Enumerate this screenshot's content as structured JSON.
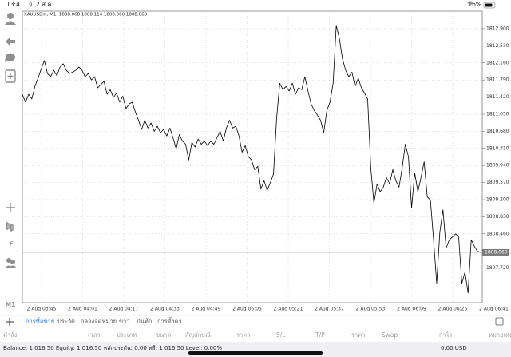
{
  "status_bar": {
    "time": "13:41",
    "date": "จ. 2 ส.ค.",
    "battery": "76%"
  },
  "toolbar": {
    "timeframe": "M1"
  },
  "chart_data": {
    "type": "line",
    "title": "XAUUSDm, M1, 1808.068 1808.114 1808.060 1808.060",
    "xtick_labels": [
      "2 Aug 03:45",
      "2 Aug 04:01",
      "2 Aug 04:17",
      "2 Aug 04:33",
      "2 Aug 04:49",
      "2 Aug 05:05",
      "2 Aug 05:21",
      "2 Aug 05:37",
      "2 Aug 05:53",
      "2 Aug 06:09",
      "2 Aug 06:25",
      "2 Aug 06:41"
    ],
    "values": [
      1811.48,
      1811.31,
      1811.48,
      1811.38,
      1811.65,
      1811.83,
      1812.03,
      1812.21,
      1811.93,
      1811.86,
      1812.0,
      1811.88,
      1812.07,
      1812.14,
      1812.0,
      1811.93,
      1811.96,
      1812.0,
      1812.07,
      1812.0,
      1811.86,
      1811.93,
      1811.79,
      1811.86,
      1811.62,
      1811.69,
      1811.76,
      1811.48,
      1811.58,
      1811.41,
      1811.51,
      1811.31,
      1811.44,
      1811.17,
      1811.27,
      1811.31,
      1811.1,
      1810.92,
      1810.72,
      1810.92,
      1810.75,
      1810.86,
      1810.68,
      1810.79,
      1810.65,
      1810.72,
      1810.58,
      1810.75,
      1810.54,
      1810.3,
      1810.61,
      1810.47,
      1810.4,
      1810.06,
      1810.44,
      1810.34,
      1810.51,
      1810.4,
      1810.47,
      1810.37,
      1810.47,
      1810.4,
      1810.54,
      1810.68,
      1810.47,
      1810.75,
      1810.92,
      1810.75,
      1810.79,
      1810.58,
      1810.23,
      1810.37,
      1810.13,
      1810.06,
      1809.85,
      1809.92,
      1809.43,
      1809.61,
      1809.4,
      1809.57,
      1809.75,
      1810.96,
      1811.72,
      1811.58,
      1811.65,
      1811.55,
      1811.72,
      1811.48,
      1811.62,
      1811.58,
      1811.86,
      1811.55,
      1811.27,
      1811.13,
      1811.03,
      1810.92,
      1810.65,
      1811.13,
      1811.31,
      1811.72,
      1812.97,
      1812.69,
      1812.24,
      1812.0,
      1811.86,
      1811.96,
      1811.65,
      1811.83,
      1811.62,
      1811.51,
      1811.38,
      1809.89,
      1809.12,
      1809.54,
      1809.37,
      1809.47,
      1809.68,
      1809.54,
      1809.85,
      1809.61,
      1809.47,
      1809.89,
      1810.4,
      1810.13,
      1809.02,
      1809.78,
      1809.37,
      1809.68,
      1810.02,
      1809.26,
      1809.19,
      1808.33,
      1807.39,
      1808.5,
      1808.98,
      1808.15,
      1808.33,
      1808.39,
      1808.46,
      1808.39,
      1807.39,
      1807.63,
      1807.18,
      1808.33,
      1808.19,
      1808.08,
      1808.06
    ],
    "color": "#000000",
    "ylim": [
      1806.97,
      1813.28
    ],
    "yticks": [
      {
        "value": 1812.9,
        "label": "1812.900"
      },
      {
        "value": 1812.53,
        "label": "1812.530"
      },
      {
        "value": 1812.16,
        "label": "1812.160"
      },
      {
        "value": 1811.79,
        "label": "1811.790"
      },
      {
        "value": 1811.42,
        "label": "1811.420"
      },
      {
        "value": 1811.05,
        "label": "1811.050"
      },
      {
        "value": 1810.68,
        "label": "1810.680"
      },
      {
        "value": 1810.31,
        "label": "1810.310"
      },
      {
        "value": 1809.94,
        "label": "1809.940"
      },
      {
        "value": 1809.57,
        "label": "1809.570"
      },
      {
        "value": 1809.2,
        "label": "1809.200"
      },
      {
        "value": 1808.83,
        "label": "1808.830"
      },
      {
        "value": 1808.46,
        "label": "1808.460"
      },
      {
        "value": 1807.72,
        "label": "1807.720"
      }
    ],
    "current_price": {
      "value": 1808.06,
      "label": "1808.060"
    },
    "grid": true
  },
  "tabs": [
    "การซื้อขาย",
    "ประวัติ",
    "กล่องจดหมาย",
    "ข่าว",
    "บันทึก",
    "การตั้งค่า"
  ],
  "active_tab": 0,
  "columns": [
    "คำสั่ง",
    "เวลา",
    "ประเภท",
    "ขนาด",
    "สัญลักษณ์",
    "ราคา",
    "S/L",
    "T/P",
    "ราคา",
    "Swap",
    "กำไร",
    "หมายเหตุ"
  ],
  "footer": {
    "summary": "Balance: 1 016.50 Equity: 1 016.50 หลักประกัน: 0.00 ฟรี: 1 016.50 Level: 0.00%",
    "profit": "0.00 USD"
  }
}
